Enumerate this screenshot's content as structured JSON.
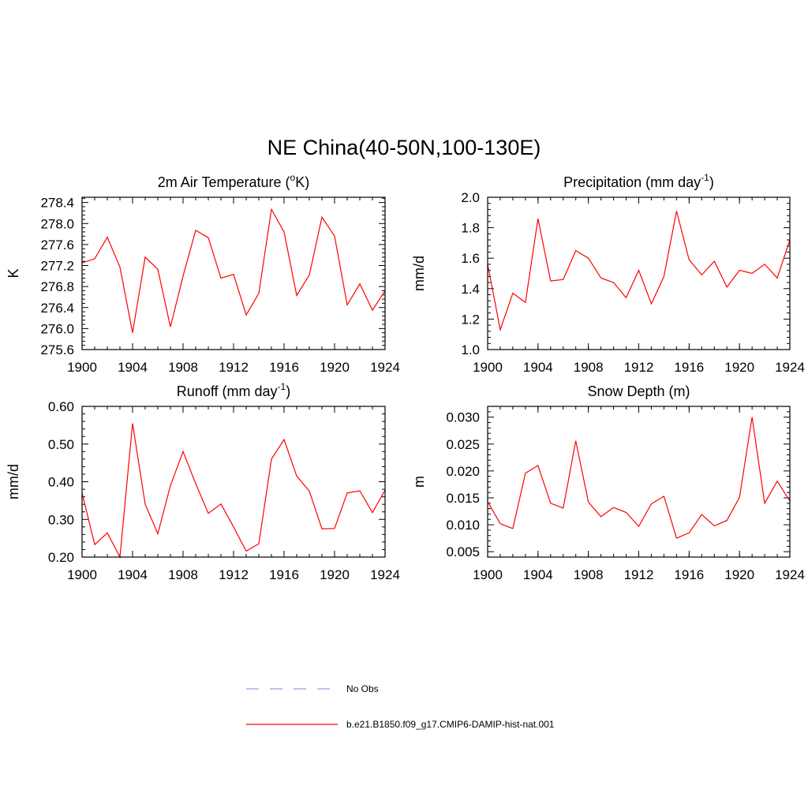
{
  "figure": {
    "title": "NE China(40-50N,100-130E)"
  },
  "legend": {
    "items": [
      {
        "label": "No Obs",
        "color": "#9a9ae6",
        "dashed": true
      },
      {
        "label": "b.e21.B1850.f09_g17.CMIP6-DAMIP-hist-nat.001",
        "color": "#ff0000",
        "dashed": false
      }
    ]
  },
  "chart_data": [
    {
      "type": "line",
      "title": {
        "pre": "2m Air Temperature (",
        "sup": "o",
        "post": "K)"
      },
      "ylabel": "K",
      "xlim": [
        1900,
        1924
      ],
      "ylim": [
        275.6,
        278.5
      ],
      "x_ticks": [
        1900,
        1904,
        1908,
        1912,
        1916,
        1920,
        1924
      ],
      "y_ticks": [
        "275.6",
        "276.0",
        "276.4",
        "276.8",
        "277.2",
        "277.6",
        "278.0",
        "278.4"
      ],
      "series": [
        {
          "color": "#ff0000",
          "x": [
            1900,
            1901,
            1902,
            1903,
            1904,
            1905,
            1906,
            1907,
            1908,
            1909,
            1910,
            1911,
            1912,
            1913,
            1914,
            1915,
            1916,
            1917,
            1918,
            1919,
            1920,
            1921,
            1922,
            1923,
            1924
          ],
          "values": [
            277.25,
            277.33,
            277.74,
            277.17,
            275.92,
            277.36,
            277.13,
            276.03,
            277.0,
            277.87,
            277.73,
            276.96,
            277.03,
            276.26,
            276.67,
            278.27,
            277.84,
            276.63,
            277.02,
            278.12,
            277.76,
            276.45,
            276.85,
            276.35,
            276.72
          ]
        }
      ]
    },
    {
      "type": "line",
      "title": {
        "pre": "Precipitation (mm day",
        "sup": "-1",
        "post": ")"
      },
      "ylabel": "mm/d",
      "xlim": [
        1900,
        1924
      ],
      "ylim": [
        1.0,
        2.0
      ],
      "x_ticks": [
        1900,
        1904,
        1908,
        1912,
        1916,
        1920,
        1924
      ],
      "y_ticks": [
        "1.0",
        "1.2",
        "1.4",
        "1.6",
        "1.8",
        "2.0"
      ],
      "series": [
        {
          "color": "#ff0000",
          "x": [
            1900,
            1901,
            1902,
            1903,
            1904,
            1905,
            1906,
            1907,
            1908,
            1909,
            1910,
            1911,
            1912,
            1913,
            1914,
            1915,
            1916,
            1917,
            1918,
            1919,
            1920,
            1921,
            1922,
            1923,
            1924
          ],
          "values": [
            1.56,
            1.13,
            1.37,
            1.31,
            1.86,
            1.45,
            1.46,
            1.65,
            1.6,
            1.47,
            1.44,
            1.34,
            1.52,
            1.3,
            1.48,
            1.91,
            1.59,
            1.49,
            1.58,
            1.41,
            1.52,
            1.5,
            1.56,
            1.47,
            1.72
          ]
        }
      ]
    },
    {
      "type": "line",
      "title": {
        "pre": "Runoff (mm day",
        "sup": "-1",
        "post": ")"
      },
      "ylabel": "mm/d",
      "xlim": [
        1900,
        1924
      ],
      "ylim": [
        0.2,
        0.6
      ],
      "x_ticks": [
        1900,
        1904,
        1908,
        1912,
        1916,
        1920,
        1924
      ],
      "y_ticks": [
        "0.20",
        "0.30",
        "0.40",
        "0.50",
        "0.60"
      ],
      "series": [
        {
          "color": "#ff0000",
          "x": [
            1900,
            1901,
            1902,
            1903,
            1904,
            1905,
            1906,
            1907,
            1908,
            1909,
            1910,
            1911,
            1912,
            1913,
            1914,
            1915,
            1916,
            1917,
            1918,
            1919,
            1920,
            1921,
            1922,
            1923,
            1924
          ],
          "values": [
            0.37,
            0.233,
            0.264,
            0.2,
            0.555,
            0.34,
            0.262,
            0.39,
            0.48,
            0.395,
            0.316,
            0.341,
            0.28,
            0.216,
            0.235,
            0.46,
            0.512,
            0.415,
            0.375,
            0.275,
            0.276,
            0.37,
            0.376,
            0.318,
            0.378
          ]
        }
      ]
    },
    {
      "type": "line",
      "title": {
        "pre": "Snow Depth (m)",
        "sup": "",
        "post": ""
      },
      "ylabel": "m",
      "xlim": [
        1900,
        1924
      ],
      "ylim": [
        0.004,
        0.032
      ],
      "x_ticks": [
        1900,
        1904,
        1908,
        1912,
        1916,
        1920,
        1924
      ],
      "y_ticks": [
        "0.005",
        "0.010",
        "0.015",
        "0.020",
        "0.025",
        "0.030"
      ],
      "series": [
        {
          "color": "#ff0000",
          "x": [
            1900,
            1901,
            1902,
            1903,
            1904,
            1905,
            1906,
            1907,
            1908,
            1909,
            1910,
            1911,
            1912,
            1913,
            1914,
            1915,
            1916,
            1917,
            1918,
            1919,
            1920,
            1921,
            1922,
            1923,
            1924
          ],
          "values": [
            0.0143,
            0.0102,
            0.0093,
            0.0196,
            0.021,
            0.014,
            0.0131,
            0.0256,
            0.0142,
            0.0115,
            0.0132,
            0.0123,
            0.0097,
            0.0139,
            0.0153,
            0.0075,
            0.0085,
            0.0119,
            0.0098,
            0.0108,
            0.0151,
            0.03,
            0.014,
            0.0181,
            0.0144
          ]
        }
      ]
    }
  ]
}
